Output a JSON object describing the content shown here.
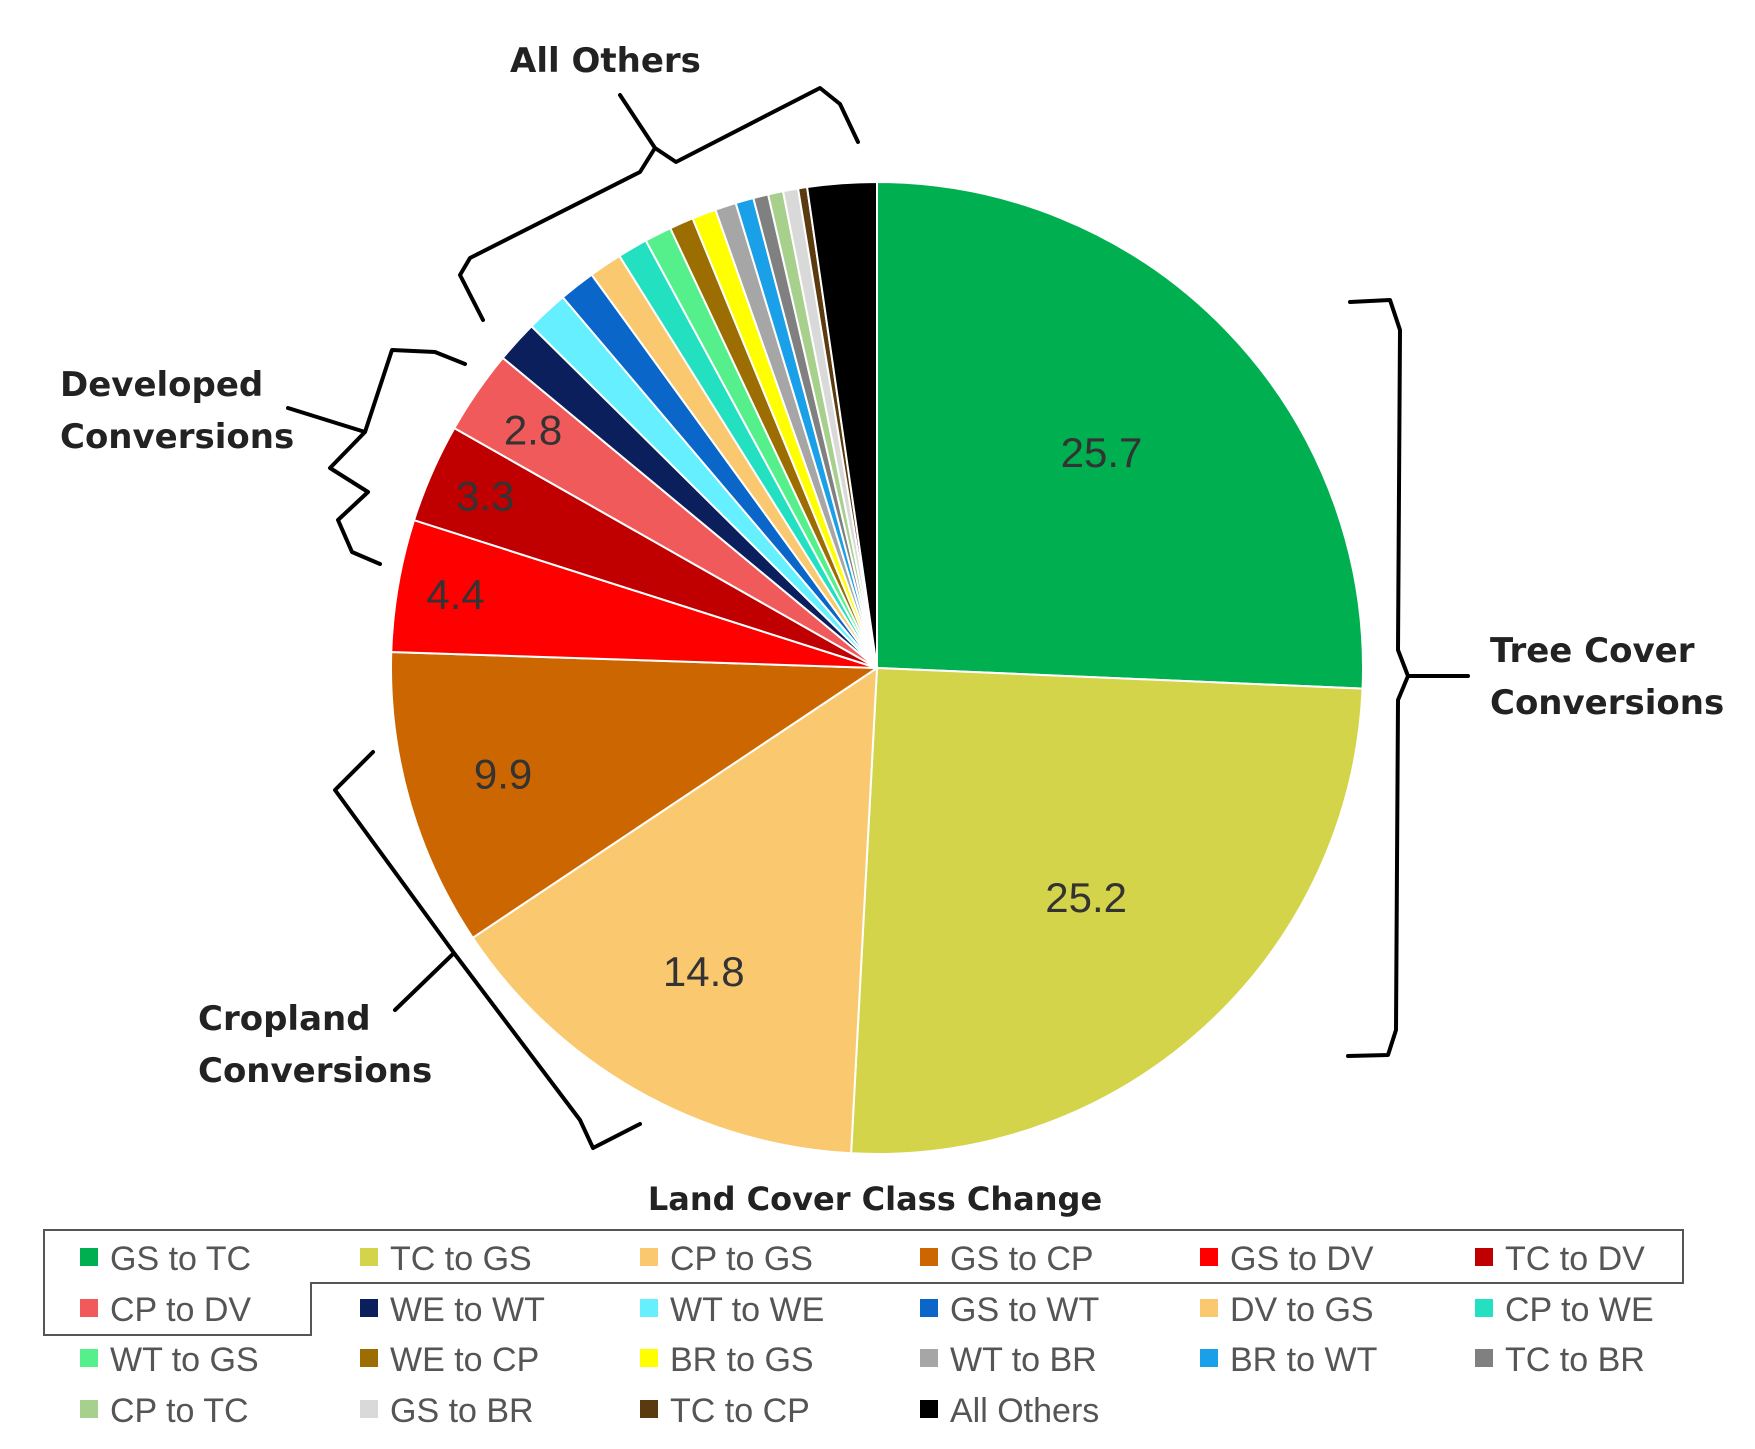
{
  "chart_data": {
    "type": "pie",
    "title": "",
    "legend_title": "Land Cover Class Change",
    "legend_position": "bottom",
    "slices": [
      {
        "label": "GS to TC",
        "value": 25.7,
        "color": "#00b050",
        "value_label": "25.7"
      },
      {
        "label": "TC to GS",
        "value": 25.2,
        "color": "#d4d44a",
        "value_label": "25.2"
      },
      {
        "label": "CP to GS",
        "value": 14.8,
        "color": "#fac86e",
        "value_label": "14.8"
      },
      {
        "label": "GS to CP",
        "value": 9.9,
        "color": "#cc6600",
        "value_label": "9.9"
      },
      {
        "label": "GS to DV",
        "value": 4.4,
        "color": "#ff0000",
        "value_label": "4.4"
      },
      {
        "label": "TC to DV",
        "value": 3.3,
        "color": "#c00000",
        "value_label": "3.3"
      },
      {
        "label": "CP to DV",
        "value": 2.8,
        "color": "#f05a5a",
        "value_label": "2.8"
      },
      {
        "label": "WE to WT",
        "value": 1.4,
        "color": "#0a1f5c",
        "value_label": ""
      },
      {
        "label": "WT to WE",
        "value": 1.4,
        "color": "#66f0ff",
        "value_label": ""
      },
      {
        "label": "GS to WT",
        "value": 1.2,
        "color": "#0a66c8",
        "value_label": ""
      },
      {
        "label": "DV to GS",
        "value": 1.1,
        "color": "#fac86e",
        "value_label": ""
      },
      {
        "label": "CP to WE",
        "value": 1.0,
        "color": "#22e0c0",
        "value_label": ""
      },
      {
        "label": "WT to GS",
        "value": 0.9,
        "color": "#55f08c",
        "value_label": ""
      },
      {
        "label": "WE to CP",
        "value": 0.8,
        "color": "#9c6d00",
        "value_label": ""
      },
      {
        "label": "BR to GS",
        "value": 0.8,
        "color": "#ffff00",
        "value_label": ""
      },
      {
        "label": "WT to BR",
        "value": 0.7,
        "color": "#a6a6a6",
        "value_label": ""
      },
      {
        "label": "BR to WT",
        "value": 0.6,
        "color": "#1aa0e8",
        "value_label": ""
      },
      {
        "label": "TC to BR",
        "value": 0.5,
        "color": "#808080",
        "value_label": ""
      },
      {
        "label": "CP to TC",
        "value": 0.5,
        "color": "#a8d08d",
        "value_label": ""
      },
      {
        "label": "GS to BR",
        "value": 0.5,
        "color": "#d9d9d9",
        "value_label": ""
      },
      {
        "label": "TC to CP",
        "value": 0.3,
        "color": "#5c3a10",
        "value_label": ""
      },
      {
        "label": "All Others",
        "value": 2.3,
        "color": "#000000",
        "value_label": ""
      }
    ],
    "groups": [
      {
        "label_lines": [
          "All Others"
        ]
      },
      {
        "label_lines": [
          "Developed",
          "Conversions"
        ]
      },
      {
        "label_lines": [
          "Tree Cover",
          "Conversions"
        ]
      },
      {
        "label_lines": [
          "Cropland",
          "Conversions"
        ]
      }
    ]
  }
}
